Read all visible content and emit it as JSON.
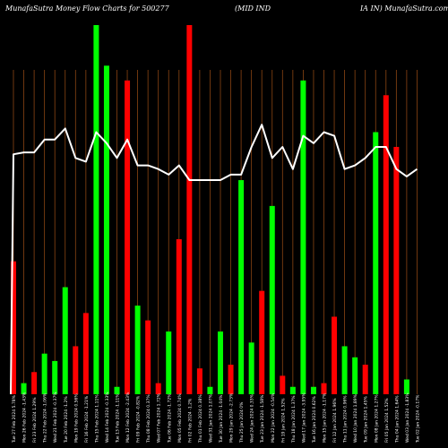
{
  "header": {
    "left": "MunafaSutra  Money Flow  Charts for 500277",
    "middle": "(MID IND",
    "right": "IA IN) MunafaSutra.com"
  },
  "colors": {
    "background": "#000000",
    "up": "#00ff00",
    "down": "#ff0000",
    "line": "#ffffff",
    "grid": "#8b4513"
  },
  "chart_data": {
    "type": "bar",
    "title": "",
    "xlabel": "",
    "ylabel": "",
    "categories": [
      "Tue 27 Feb 2024",
      "Mon 26 Feb 2024",
      "Fri 23 Feb 2024",
      "Thu 22 Feb 2024",
      "Wed 21 Feb 2024",
      "Tue 20 Feb 2024",
      "Mon 19 Feb 2024",
      "Fri 16 Feb 2024",
      "Thu 15 Feb 2024",
      "Wed 14 Feb 2024",
      "Tue 13 Feb 2024",
      "Mon 12 Feb 2024",
      "Fri 09 Feb 2024",
      "Thu 08 Feb 2024",
      "Wed 07 Feb 2024",
      "Tue 06 Feb 2024",
      "Mon 05 Feb 2024",
      "Fri 02 Feb 2024",
      "Thu 01 Feb 2024",
      "Wed 31 Jan 2024",
      "Tue 30 Jan 2024",
      "Mon 29 Jan 2024",
      "Thu 25 Jan 2024",
      "Wed 24 Jan 2024",
      "Tue 23 Jan 2024",
      "Mon 22 Jan 2024",
      "Fri 19 Jan 2024",
      "Thu 18 Jan 2024",
      "Wed 17 Jan 2024",
      "Tue 16 Jan 2024",
      "Mon 15 Jan 2024",
      "Fri 12 Jan 2024",
      "Thu 11 Jan 2024",
      "Wed 10 Jan 2024",
      "Tue 09 Jan 2024",
      "Mon 08 Jan 2024",
      "Fri 05 Jan 2024",
      "Thu 04 Jan 2024",
      "Wed 03 Jan 2024",
      "Tue 02 Jan 2024"
    ],
    "tick_labels": [
      "Tue 27 Feb 2024 5.78%",
      "Mon 26 Feb 2024 -1.43%",
      "Fri 23 Feb 2024 1.29%",
      "Thu 22 Feb 2024 -1.06%",
      "Wed 21 Feb 2024 -0.37%",
      "Tue 20 Feb 2024 -1.2%",
      "Mon 19 Feb 2024 0.56%",
      "Fri 16 Feb 2024 -1.21%",
      "Thu 15 Feb 2024 1.11%",
      "Wed 14 Feb 2024 -0.33%",
      "Tue 13 Feb 2024 -1.11%",
      "Mon 12 Feb 2024 -2.43%",
      "Fri 09 Feb 2024 -0.82%",
      "Thu 08 Feb 2024 0.37%",
      "Wed 07 Feb 2024 1.72%",
      "Tue 06 Feb 2024 -1.72%",
      "Mon 05 Feb 2024 0.74%",
      "Fri 02 Feb 2024 -1.2%",
      "Thu 01 Feb 2024 0.38%",
      "Wed 31 Jan 2024 1.07%",
      "Tue 30 Jan 2024 -1.04%",
      "Mon 29 Jan 2024 -2.73%",
      "Thu 25 Jan 2024 0%",
      "Wed 24 Jan 2024 0.33%",
      "Tue 23 Jan 2024 -1.58%",
      "Mon 22 Jan 2024 -0.54%",
      "Fri 19 Jan 2024 1.52%",
      "Thu 18 Jan 2024 1.37%",
      "Wed 17 Jan 2024 -3.95%",
      "Tue 16 Jan 2024 0.62%",
      "Mon 15 Jan 2024 -1.17%",
      "Fri 12 Jan 2024 1.96%",
      "Thu 11 Jan 2024 0.96%",
      "Wed 10 Jan 2024 1.89%",
      "Tue 09 Jan 2024 1.45%",
      "Mon 08 Jan 2024 1.27%",
      "Fri 05 Jan 2024 1.52%",
      "Thu 04 Jan 2024 1.64%",
      "Wed 03 Jan 2024 -1.83%",
      "Tue 02 Jan 2024 -0.17%"
    ],
    "series": [
      {
        "values": [
          36,
          3,
          6,
          11,
          9,
          29,
          13,
          22,
          100,
          89,
          2,
          85,
          24,
          20,
          3,
          17,
          42,
          100,
          7,
          2,
          17,
          8,
          58,
          14,
          28,
          51,
          5,
          2,
          85,
          2,
          3,
          21,
          13,
          10,
          8,
          71,
          81,
          67,
          4,
          0
        ],
        "colors": [
          "down",
          "up",
          "down",
          "up",
          "up",
          "up",
          "down",
          "down",
          "up",
          "up",
          "up",
          "down",
          "up",
          "down",
          "down",
          "up",
          "down",
          "down",
          "down",
          "up",
          "up",
          "down",
          "up",
          "up",
          "down",
          "up",
          "down",
          "up",
          "up",
          "up",
          "down",
          "down",
          "up",
          "up",
          "down",
          "up",
          "down",
          "down",
          "up",
          "up"
        ]
      },
      {
        "values": [
          65,
          65.5,
          65.5,
          69,
          69,
          72,
          64,
          63,
          71,
          68,
          64,
          69,
          62,
          62,
          61,
          59.5,
          62,
          58,
          58,
          58,
          58,
          59.5,
          59.5,
          67,
          73,
          64,
          67,
          61,
          70,
          68,
          71,
          70,
          61,
          62,
          64,
          67,
          67,
          61,
          59,
          61
        ]
      }
    ],
    "ylim": [
      0,
      100
    ],
    "grid": true,
    "legend": "none"
  }
}
